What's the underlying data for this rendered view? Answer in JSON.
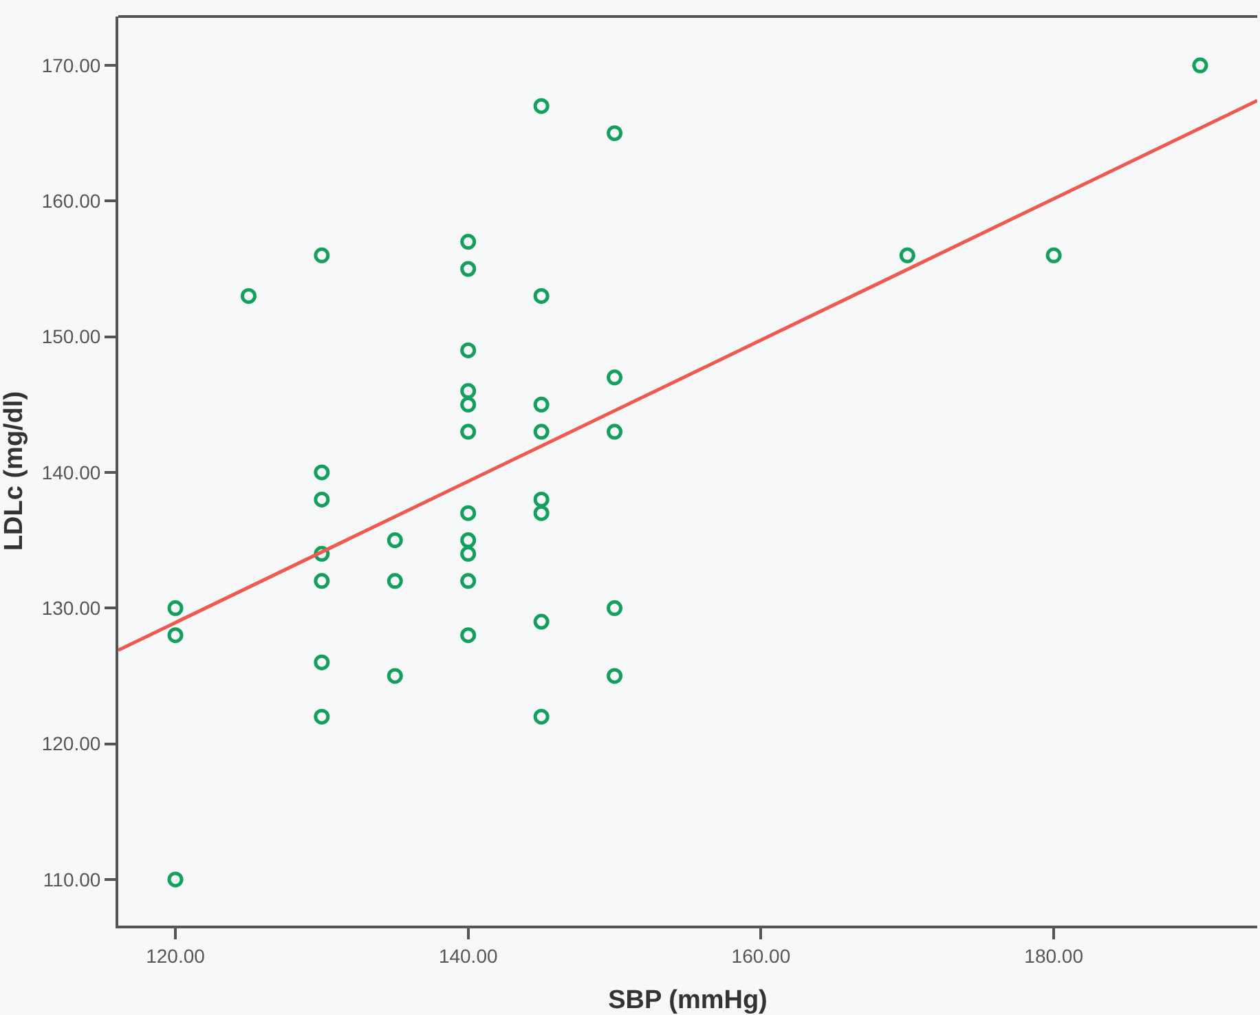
{
  "chart_data": {
    "type": "scatter",
    "xlabel": "SBP (mmHg)",
    "ylabel": "LDLc (mg/dl)",
    "xlim": [
      116.1,
      193.9
    ],
    "ylim": [
      106.6,
      173.6
    ],
    "xticks": [
      {
        "value": 120,
        "label": "120.00"
      },
      {
        "value": 140,
        "label": "140.00"
      },
      {
        "value": 160,
        "label": "160.00"
      },
      {
        "value": 180,
        "label": "180.00"
      }
    ],
    "yticks": [
      {
        "value": 110,
        "label": "110.00"
      },
      {
        "value": 120,
        "label": "120.00"
      },
      {
        "value": 130,
        "label": "130.00"
      },
      {
        "value": 140,
        "label": "140.00"
      },
      {
        "value": 150,
        "label": "150.00"
      },
      {
        "value": 160,
        "label": "160.00"
      },
      {
        "value": 170,
        "label": "170.00"
      }
    ],
    "grid": false,
    "series": [
      {
        "marker": "circle",
        "color": "#12a05c",
        "x": [
          120,
          120,
          120,
          125,
          130,
          130,
          130,
          130,
          130,
          130,
          130,
          135,
          135,
          135,
          140,
          140,
          140,
          140,
          140,
          140,
          140,
          140,
          140,
          140,
          140,
          145,
          145,
          145,
          145,
          145,
          145,
          145,
          145,
          150,
          150,
          150,
          150,
          150,
          170,
          180,
          190
        ],
        "values": [
          130,
          128,
          110,
          153,
          156,
          140,
          138,
          134,
          132,
          126,
          122,
          135,
          132,
          125,
          157,
          155,
          149,
          146,
          145,
          143,
          137,
          135,
          134,
          132,
          128,
          167,
          153,
          145,
          143,
          138,
          137,
          129,
          122,
          165,
          147,
          143,
          130,
          125,
          156,
          156,
          170
        ]
      },
      {
        "type": "line",
        "marker": "none",
        "color": "#ef5a50",
        "x": [
          116.1,
          193.9
        ],
        "values": [
          126.9,
          167.4
        ]
      }
    ]
  }
}
